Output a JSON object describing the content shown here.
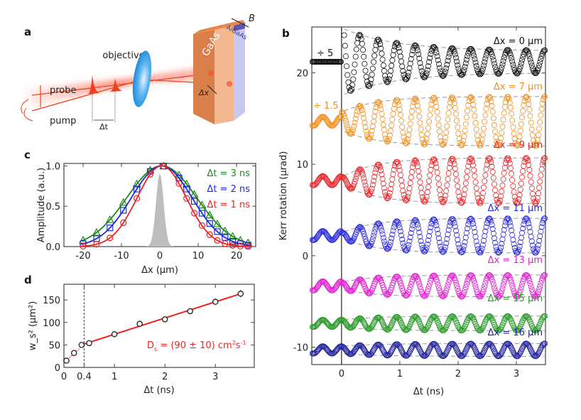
{
  "panel_labels": {
    "a": "a",
    "b": "b",
    "c": "c",
    "d": "d"
  },
  "diagram": {
    "objective": "objective",
    "probe": "probe",
    "pump": "pump",
    "delta_t": "Δt",
    "delta_x": "Δx",
    "gaas": "GaAs",
    "algaas": "AlGaAs",
    "field": "B",
    "colors": {
      "beam": "#f0401e",
      "lens": "#3aa0e8",
      "gaas": "#e8874a",
      "algaas": "#5a5aa8"
    }
  },
  "chart_data": [
    {
      "panel": "b",
      "type": "scatter",
      "xlabel": "Δt (ns)",
      "ylabel": "Kerr rotation (µrad)",
      "xlim": [
        -0.51,
        3.5
      ],
      "ylim": [
        -11.9,
        25
      ],
      "xticks": [
        0,
        1,
        2,
        3
      ],
      "yticks": [
        -10,
        0,
        10,
        20
      ],
      "annotations": [
        {
          "text": "÷ 5",
          "color": "#111111"
        },
        {
          "text": "÷ 1.5",
          "color": "#f0901e"
        }
      ],
      "oscillation_frequency_GHz": 3.15,
      "first_peak_ns": 0.63,
      "series": [
        {
          "name": "Δx = 0 µm",
          "color": "#111111",
          "offset": 21.2,
          "amp_start": 3.7,
          "amp_end": 1.2,
          "pre_amp": 0.2
        },
        {
          "name": "Δx = 7 µm",
          "color": "#f0901e",
          "offset": 14.7,
          "amp_start": 1.0,
          "amp_end": 2.7,
          "pre_amp": 0.5
        },
        {
          "name": "Δx = 9 µm",
          "color": "#e8262a",
          "offset": 8.2,
          "amp_start": 0.4,
          "amp_end": 2.5,
          "pre_amp": 0.5
        },
        {
          "name": "Δx = 11 µm",
          "color": "#2a2ad8",
          "offset": 2.2,
          "amp_start": 0.3,
          "amp_end": 1.9,
          "pre_amp": 0.5
        },
        {
          "name": "Δx = 13 µm",
          "color": "#e020d0",
          "offset": -3.3,
          "amp_start": 0.4,
          "amp_end": 1.2,
          "pre_amp": 0.5
        },
        {
          "name": "Δx = 15 µm",
          "color": "#2a9a2a",
          "offset": -7.4,
          "amp_start": 0.4,
          "amp_end": 0.8,
          "pre_amp": 0.4
        },
        {
          "name": "Δx = 16 µm",
          "color": "#22229a",
          "offset": -10.3,
          "amp_start": 0.4,
          "amp_end": 0.7,
          "pre_amp": 0.4
        }
      ]
    },
    {
      "panel": "c",
      "type": "scatter",
      "xlabel": "Δx (µm)",
      "ylabel": "Amplitude (a.u.)",
      "xlim": [
        -25,
        25
      ],
      "ylim": [
        0,
        1.03
      ],
      "xticks": [
        -20,
        -10,
        0,
        10,
        20
      ],
      "yticks": [
        0.0,
        0.5,
        1.0
      ],
      "ytick_labels": [
        "0.0",
        "0.5",
        "1.0"
      ],
      "x": [
        -20,
        -16.5,
        -13,
        -9.5,
        -6,
        -2.5,
        1,
        5,
        7,
        9,
        11,
        13,
        15,
        17,
        19,
        21,
        23
      ],
      "series": [
        {
          "name": "Δt = 3 ns",
          "color": "#1e8a1e",
          "marker": "triangle",
          "sigma": 9.1,
          "center": 0.5
        },
        {
          "name": "Δt = 2 ns",
          "color": "#1e2ae0",
          "marker": "square",
          "sigma": 7.9,
          "center": 0.5
        },
        {
          "name": "Δt = 1 ns",
          "color": "#ee2222",
          "marker": "circle",
          "sigma": 6.4,
          "center": 0.5
        }
      ],
      "laser_spot": {
        "center": 0,
        "sigma": 1.0,
        "height": 0.9,
        "color": "#bdbdbd"
      }
    },
    {
      "panel": "d",
      "type": "scatter",
      "xlabel": "Δt (ns)",
      "ylabel": "w_s² (µm²)",
      "xlim": [
        0,
        3.77
      ],
      "ylim": [
        0,
        185
      ],
      "xticks": [
        0,
        0.4,
        1,
        2,
        3
      ],
      "xtick_labels": [
        "0",
        "0.4",
        "1",
        "2",
        "3"
      ],
      "yticks": [
        0,
        50,
        100,
        150
      ],
      "x": [
        0.05,
        0.2,
        0.35,
        0.5,
        1.0,
        1.5,
        2.0,
        2.5,
        3.0,
        3.5
      ],
      "y": [
        15,
        32,
        50,
        54,
        74,
        97,
        107,
        125,
        146,
        164
      ],
      "yerr": [
        3,
        3,
        3,
        3,
        4,
        5,
        6,
        6,
        7,
        8
      ],
      "fit": {
        "x": [
          0.4,
          3.5
        ],
        "y": [
          52,
          164
        ],
        "color": "#ee2222"
      },
      "extrapolation": {
        "x": [
          0,
          0.4
        ],
        "y": [
          10,
          52
        ]
      },
      "vline_x": 0.4,
      "annotation": {
        "main": "D",
        "sub": "s",
        "rest": " = (90 ± 10) cm",
        "sup1": "2",
        "s": "s",
        "sup2": "-1"
      }
    }
  ]
}
